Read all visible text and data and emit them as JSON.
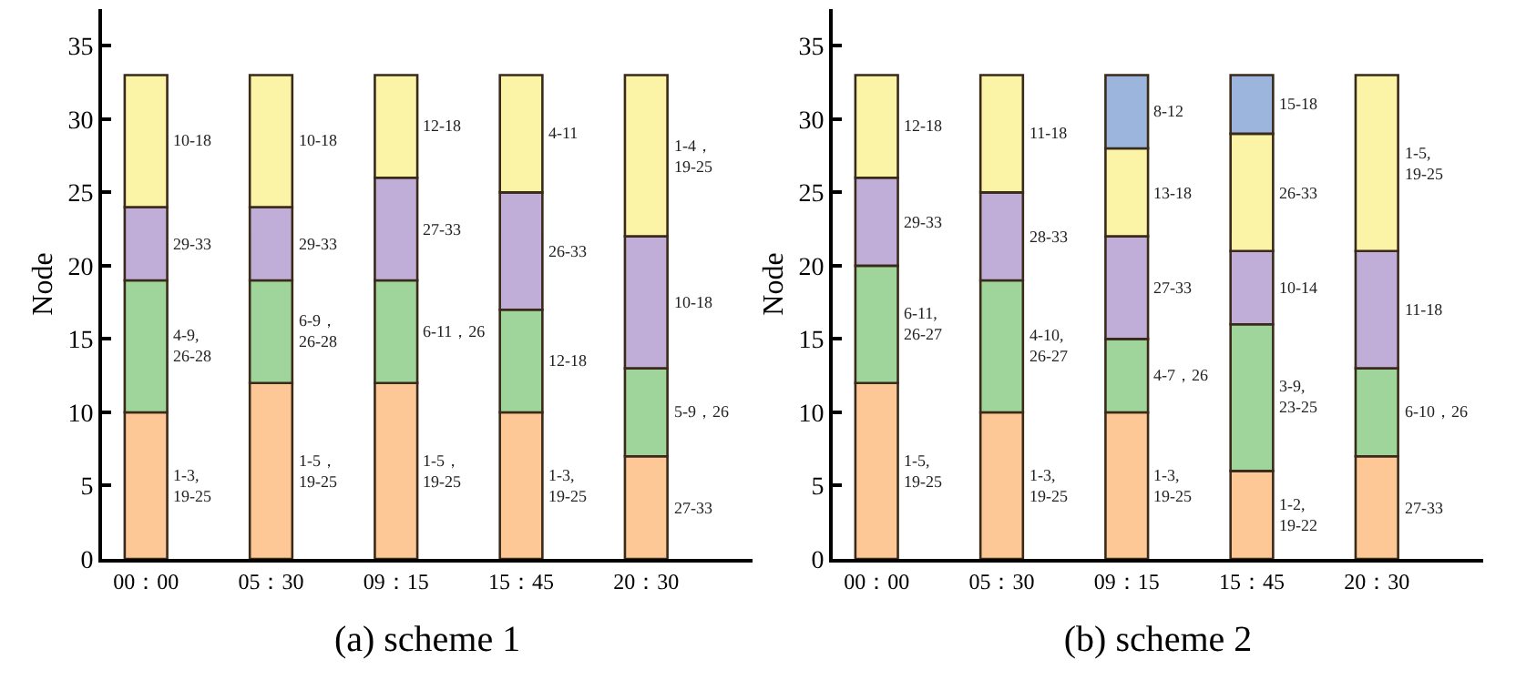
{
  "chart_data": [
    {
      "type": "bar",
      "stacked": true,
      "xlabel": "(a) scheme 1",
      "ylabel": "Node",
      "categories": [
        "00：00",
        "05：30",
        "09：15",
        "15：45",
        "20：30"
      ],
      "ylim": [
        0,
        37.5
      ],
      "yticks": [
        0,
        5,
        10,
        15,
        20,
        25,
        30,
        35
      ],
      "series": [
        {
          "color": "#fdc896",
          "values": [
            10,
            12,
            12,
            10,
            7
          ]
        },
        {
          "color": "#9fd49a",
          "values": [
            9,
            7,
            7,
            7,
            6
          ]
        },
        {
          "color": "#c0aed8",
          "values": [
            5,
            5,
            7,
            8,
            9
          ]
        },
        {
          "color": "#fbf3a6",
          "values": [
            9,
            9,
            7,
            8,
            11
          ]
        }
      ],
      "annotations": [
        "1-3,\n19-25",
        "4-9,\n26-28",
        "29-33",
        "10-18",
        "1-5，\n19-25",
        "6-9，\n26-28",
        "29-33",
        "10-18",
        "1-5，\n19-25",
        "6-11，26",
        "27-33",
        "12-18",
        "1-3,\n19-25",
        "12-18",
        "26-33",
        "4-11",
        "27-33",
        "5-9，26",
        "10-18",
        "1-4，\n19-25"
      ]
    },
    {
      "type": "bar",
      "stacked": true,
      "xlabel": "(b) scheme 2",
      "ylabel": "Node",
      "categories": [
        "00：00",
        "05：30",
        "09：15",
        "15：45",
        "20：30"
      ],
      "ylim": [
        0,
        37.5
      ],
      "yticks": [
        0,
        5,
        10,
        15,
        20,
        25,
        30,
        35
      ],
      "series": [
        {
          "color": "#fdc896",
          "values": [
            12,
            10,
            10,
            6,
            7
          ]
        },
        {
          "color": "#9fd49a",
          "values": [
            8,
            9,
            5,
            10,
            6
          ]
        },
        {
          "color": "#c0aed8",
          "values": [
            6,
            6,
            7,
            5,
            8
          ]
        },
        {
          "color": "#fbf3a6",
          "values": [
            7,
            8,
            6,
            8,
            12
          ]
        },
        {
          "color": "#9bb5dd",
          "values": [
            null,
            null,
            5,
            4,
            null
          ]
        }
      ],
      "annotations": [
        "1-5,\n19-25",
        "6-11,\n26-27",
        "29-33",
        "12-18",
        "1-3,\n19-25",
        "4-10,\n26-27",
        "28-33",
        "11-18",
        "1-3,\n19-25",
        "4-7，26",
        "27-33",
        "13-18",
        "8-12",
        "1-2,\n19-22",
        "3-9,\n23-25",
        "10-14",
        "26-33",
        "15-18",
        "27-33",
        "6-10，26",
        "11-18",
        "1-5,\n19-25"
      ]
    }
  ]
}
